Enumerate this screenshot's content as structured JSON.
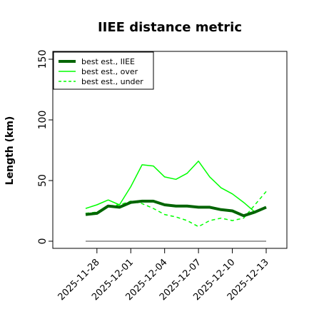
{
  "chart_data": {
    "type": "line",
    "title": "IIEE distance metric",
    "ylabel": "Length (km)",
    "xlabel": "",
    "ylim": [
      0,
      158
    ],
    "yticks": [
      0,
      50,
      100,
      150
    ],
    "x": [
      "2025-11-27",
      "2025-11-28",
      "2025-11-29",
      "2025-11-30",
      "2025-12-01",
      "2025-12-02",
      "2025-12-03",
      "2025-12-04",
      "2025-12-05",
      "2025-12-06",
      "2025-12-07",
      "2025-12-08",
      "2025-12-09",
      "2025-12-10",
      "2025-12-11",
      "2025-12-12",
      "2025-12-13"
    ],
    "xticks": [
      "2025-11-28",
      "2025-12-01",
      "2025-12-04",
      "2025-12-07",
      "2025-12-10",
      "2025-12-13"
    ],
    "legend_position": "top-left",
    "series": [
      {
        "name": "best est., IIEE",
        "color": "#006400",
        "style": "solid",
        "width": 4,
        "values": [
          22,
          23,
          29,
          28,
          32,
          33,
          33,
          30,
          29,
          29,
          28,
          28,
          26,
          25,
          21,
          24,
          28
        ]
      },
      {
        "name": "best est., over",
        "color": "#00ff00",
        "style": "solid",
        "width": 1.5,
        "values": [
          27,
          30,
          34,
          30,
          45,
          63,
          62,
          53,
          51,
          56,
          66,
          53,
          44,
          39,
          32,
          24,
          28
        ]
      },
      {
        "name": "best est., under",
        "color": "#00ff00",
        "style": "dashed",
        "width": 1.5,
        "values": [
          23,
          24,
          29,
          30,
          33,
          31,
          27,
          22,
          20,
          17,
          12,
          17,
          19,
          17,
          19,
          30,
          41
        ]
      },
      {
        "name": "",
        "color": "#808080",
        "style": "solid",
        "width": 1.5,
        "values": [
          0,
          0,
          0,
          0,
          0,
          0,
          0,
          0,
          0,
          0,
          0,
          0,
          0,
          0,
          0,
          0,
          0
        ]
      }
    ]
  }
}
